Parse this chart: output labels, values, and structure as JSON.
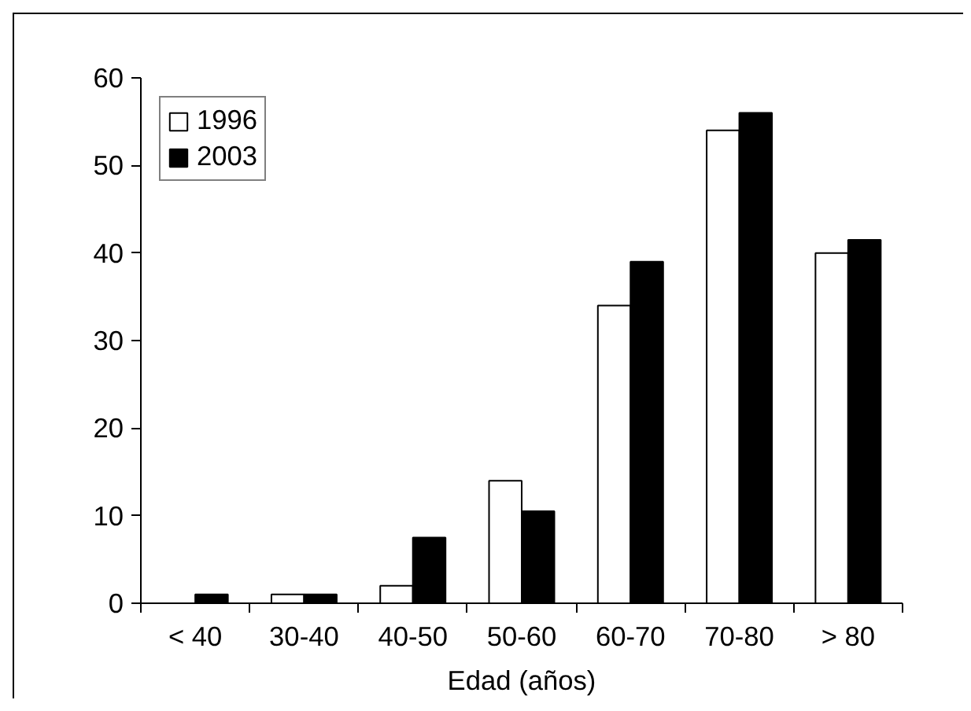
{
  "chart_data": {
    "type": "bar",
    "xlabel": "Edad (años)",
    "categories": [
      "< 40",
      "30-40",
      "40-50",
      "50-60",
      "60-70",
      "70-80",
      "> 80"
    ],
    "series": [
      {
        "name": "1996",
        "color": "#ffffff",
        "values": [
          null,
          1,
          2,
          14,
          34,
          54,
          40
        ]
      },
      {
        "name": "2003",
        "color": "#000000",
        "values": [
          1,
          1,
          7.5,
          10.5,
          39,
          56,
          41.5
        ]
      }
    ],
    "ylim": [
      0,
      60
    ],
    "yticks": [
      0,
      10,
      20,
      30,
      40,
      50,
      60
    ],
    "grid": false,
    "legend": "top left"
  }
}
